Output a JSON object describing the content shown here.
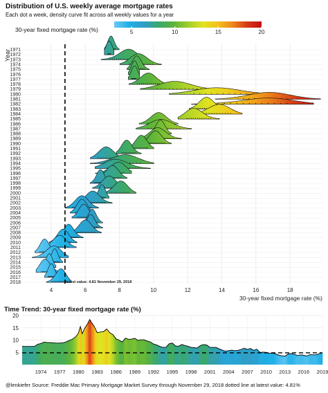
{
  "title": "Distribution of U.S. weekly average mortgage rates",
  "subtitle": "Each dot a week, density curve fit across all weekly values for a year",
  "bottom_title": "Time Trend: 30-year fixed mortgage rate (%)",
  "caption": "@lenkiefer Source: Freddie Mac Primary Mortgage Market Survey through November 29, 2018 dotted line at latest value: 4.81%",
  "colors": {
    "scale": [
      "#6ac9f4",
      "#1fb0e6",
      "#2e9ec9",
      "#3aa86e",
      "#5bb33b",
      "#9fce2a",
      "#e0e321",
      "#f4c21b",
      "#ec8a1c",
      "#d83a18",
      "#c40f0f"
    ],
    "line": "#000000",
    "grid": "#e6e6e6"
  },
  "chart_data": [
    {
      "type": "ridgeline",
      "title": "Distribution of U.S. weekly average mortgage rates",
      "subtitle": "Each dot a week, density curve fit across all weekly values for a year",
      "xlabel": "30-year fixed mortgage rate (%)",
      "ylabel": "Year",
      "xlim": [
        2.3,
        19.9
      ],
      "x_ticks": [
        4,
        6,
        8,
        10,
        12,
        14,
        16,
        18
      ],
      "color_scale": {
        "label": "30-year fixed mortgage rate (%)",
        "min": 3,
        "max": 20,
        "ticks": [
          5,
          10,
          15,
          20
        ]
      },
      "latest_value": 4.81,
      "latest_label": "latest value: 4.81 November 29, 2018",
      "years": [
        "1971",
        "1972",
        "1973",
        "1974",
        "1975",
        "1976",
        "1977",
        "1978",
        "1979",
        "1980",
        "1981",
        "1982",
        "1983",
        "1984",
        "1985",
        "1986",
        "1987",
        "1988",
        "1989",
        "1990",
        "1991",
        "1992",
        "1993",
        "1994",
        "1995",
        "1996",
        "1997",
        "1998",
        "1999",
        "2000",
        "2001",
        "2002",
        "2003",
        "2004",
        "2005",
        "2006",
        "2007",
        "2008",
        "2009",
        "2010",
        "2011",
        "2012",
        "2013",
        "2014",
        "2015",
        "2016",
        "2017",
        "2018"
      ],
      "distributions": [
        {
          "year": "1971",
          "min": 7.3,
          "max": 7.8,
          "mode": 7.5
        },
        {
          "year": "1972",
          "min": 7.3,
          "max": 7.5,
          "mode": 7.4
        },
        {
          "year": "1973",
          "min": 7.4,
          "max": 8.9,
          "mode": 8.6
        },
        {
          "year": "1974",
          "min": 8.5,
          "max": 10.0,
          "mode": 9.1
        },
        {
          "year": "1975",
          "min": 8.7,
          "max": 9.5,
          "mode": 9.0
        },
        {
          "year": "1976",
          "min": 8.7,
          "max": 9.0,
          "mode": 8.9
        },
        {
          "year": "1977",
          "min": 8.7,
          "max": 9.0,
          "mode": 8.9
        },
        {
          "year": "1978",
          "min": 9.0,
          "max": 10.4,
          "mode": 9.7
        },
        {
          "year": "1979",
          "min": 10.1,
          "max": 12.9,
          "mode": 11.2
        },
        {
          "year": "1980",
          "min": 12.2,
          "max": 16.3,
          "mode": 13.6
        },
        {
          "year": "1981",
          "min": 14.8,
          "max": 18.6,
          "mode": 16.8
        },
        {
          "year": "1982",
          "min": 13.6,
          "max": 18.0,
          "mode": 16.9
        },
        {
          "year": "1983",
          "min": 12.5,
          "max": 13.8,
          "mode": 13.1
        },
        {
          "year": "1984",
          "min": 12.7,
          "max": 14.6,
          "mode": 13.9
        },
        {
          "year": "1985",
          "min": 11.9,
          "max": 13.4,
          "mode": 12.3
        },
        {
          "year": "1986",
          "min": 9.6,
          "max": 11.0,
          "mode": 10.3
        },
        {
          "year": "1987",
          "min": 9.6,
          "max": 11.6,
          "mode": 10.4
        },
        {
          "year": "1988",
          "min": 10.0,
          "max": 10.8,
          "mode": 10.4
        },
        {
          "year": "1989",
          "min": 9.8,
          "max": 11.2,
          "mode": 10.2
        },
        {
          "year": "1990",
          "min": 9.6,
          "max": 10.7,
          "mode": 10.1
        },
        {
          "year": "1991",
          "min": 8.7,
          "max": 9.7,
          "mode": 9.3
        },
        {
          "year": "1992",
          "min": 8.1,
          "max": 9.0,
          "mode": 8.4
        },
        {
          "year": "1993",
          "min": 6.7,
          "max": 8.0,
          "mode": 7.2
        },
        {
          "year": "1994",
          "min": 7.0,
          "max": 9.3,
          "mode": 8.4
        },
        {
          "year": "1995",
          "min": 7.2,
          "max": 9.2,
          "mode": 7.7
        },
        {
          "year": "1996",
          "min": 7.0,
          "max": 8.3,
          "mode": 8.0
        },
        {
          "year": "1997",
          "min": 7.0,
          "max": 8.1,
          "mode": 7.6
        },
        {
          "year": "1998",
          "min": 6.5,
          "max": 7.2,
          "mode": 6.9
        },
        {
          "year": "1999",
          "min": 6.8,
          "max": 8.0,
          "mode": 7.4
        },
        {
          "year": "2000",
          "min": 7.4,
          "max": 8.6,
          "mode": 8.1
        },
        {
          "year": "2001",
          "min": 6.6,
          "max": 7.2,
          "mode": 7.0
        },
        {
          "year": "2002",
          "min": 6.0,
          "max": 7.2,
          "mode": 6.4
        },
        {
          "year": "2003",
          "min": 5.2,
          "max": 6.4,
          "mode": 5.8
        },
        {
          "year": "2004",
          "min": 5.4,
          "max": 6.3,
          "mode": 5.8
        },
        {
          "year": "2005",
          "min": 5.5,
          "max": 6.4,
          "mode": 5.9
        },
        {
          "year": "2006",
          "min": 6.1,
          "max": 6.8,
          "mode": 6.4
        },
        {
          "year": "2007",
          "min": 6.1,
          "max": 6.8,
          "mode": 6.3
        },
        {
          "year": "2008",
          "min": 5.5,
          "max": 6.6,
          "mode": 6.0
        },
        {
          "year": "2009",
          "min": 4.7,
          "max": 5.6,
          "mode": 5.0
        },
        {
          "year": "2010",
          "min": 4.2,
          "max": 5.2,
          "mode": 4.7
        },
        {
          "year": "2011",
          "min": 3.9,
          "max": 5.1,
          "mode": 4.5
        },
        {
          "year": "2012",
          "min": 3.3,
          "max": 4.1,
          "mode": 3.6
        },
        {
          "year": "2013",
          "min": 3.3,
          "max": 4.6,
          "mode": 4.2
        },
        {
          "year": "2014",
          "min": 4.0,
          "max": 4.5,
          "mode": 4.2
        },
        {
          "year": "2015",
          "min": 3.6,
          "max": 4.1,
          "mode": 3.9
        },
        {
          "year": "2016",
          "min": 3.4,
          "max": 4.3,
          "mode": 3.6
        },
        {
          "year": "2017",
          "min": 3.8,
          "max": 4.3,
          "mode": 4.0
        },
        {
          "year": "2018",
          "min": 4.0,
          "max": 4.9,
          "mode": 4.6
        }
      ]
    },
    {
      "type": "area",
      "title": "Time Trend: 30-year fixed mortgage rate (%)",
      "xlim": [
        1971,
        2019
      ],
      "ylim": [
        0,
        20
      ],
      "y_ticks": [
        5,
        10,
        15,
        20
      ],
      "x_ticks": [
        "1974",
        "1977",
        "1980",
        "1983",
        "1986",
        "1989",
        "1992",
        "1995",
        "1998",
        "2001",
        "2004",
        "2007",
        "2010",
        "2013",
        "2016",
        "2019"
      ],
      "latest_value": 4.81,
      "x": [
        1971.0,
        1971.5,
        1972.0,
        1972.5,
        1973.0,
        1973.5,
        1974.0,
        1974.5,
        1975.0,
        1975.5,
        1976.0,
        1976.5,
        1977.0,
        1977.5,
        1978.0,
        1978.5,
        1979.0,
        1979.5,
        1980.0,
        1980.3,
        1980.6,
        1981.0,
        1981.5,
        1981.8,
        1982.0,
        1982.5,
        1983.0,
        1983.5,
        1984.0,
        1984.5,
        1985.0,
        1985.5,
        1986.0,
        1986.5,
        1987.0,
        1987.5,
        1988.0,
        1988.5,
        1989.0,
        1989.5,
        1990.0,
        1990.5,
        1991.0,
        1991.5,
        1992.0,
        1992.5,
        1993.0,
        1993.5,
        1994.0,
        1994.5,
        1995.0,
        1995.5,
        1996.0,
        1996.5,
        1997.0,
        1997.5,
        1998.0,
        1998.5,
        1999.0,
        1999.5,
        2000.0,
        2000.5,
        2001.0,
        2001.5,
        2002.0,
        2002.5,
        2003.0,
        2003.5,
        2004.0,
        2004.5,
        2005.0,
        2005.5,
        2006.0,
        2006.5,
        2007.0,
        2007.5,
        2008.0,
        2008.5,
        2009.0,
        2009.5,
        2010.0,
        2010.5,
        2011.0,
        2011.5,
        2012.0,
        2012.5,
        2013.0,
        2013.5,
        2014.0,
        2014.5,
        2015.0,
        2015.5,
        2016.0,
        2016.5,
        2017.0,
        2017.5,
        2018.0,
        2018.5,
        2018.9
      ],
      "y": [
        7.5,
        7.4,
        7.4,
        7.4,
        7.5,
        8.3,
        8.6,
        9.2,
        9.0,
        9.0,
        8.9,
        8.8,
        8.8,
        8.9,
        9.2,
        9.8,
        10.3,
        11.2,
        12.8,
        15.5,
        12.6,
        14.8,
        16.8,
        18.4,
        17.4,
        15.6,
        13.0,
        13.3,
        13.4,
        14.5,
        13.0,
        12.2,
        10.5,
        10.0,
        9.2,
        10.8,
        10.3,
        10.4,
        10.7,
        9.9,
        10.1,
        10.1,
        9.6,
        9.2,
        8.4,
        8.0,
        7.4,
        7.0,
        7.1,
        8.5,
        8.8,
        7.6,
        7.5,
        8.2,
        7.8,
        7.5,
        7.0,
        6.9,
        6.8,
        7.8,
        8.2,
        8.0,
        7.0,
        7.0,
        7.0,
        6.4,
        5.9,
        5.5,
        5.7,
        5.9,
        5.7,
        5.8,
        6.2,
        6.7,
        6.2,
        6.6,
        5.8,
        6.3,
        5.0,
        5.1,
        5.0,
        4.6,
        4.7,
        4.4,
        3.9,
        3.6,
        3.4,
        4.3,
        4.5,
        4.2,
        3.7,
        4.0,
        3.8,
        3.5,
        4.1,
        4.0,
        4.0,
        4.5,
        4.8
      ]
    }
  ]
}
